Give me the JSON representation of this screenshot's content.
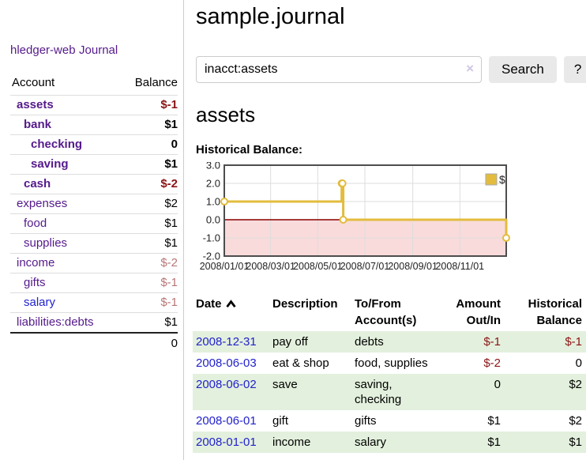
{
  "app": {
    "title": "hledger-web"
  },
  "sidebar": {
    "journal_link": "Journal",
    "accounts_header": {
      "account": "Account",
      "balance": "Balance"
    },
    "accounts": [
      {
        "name": "assets",
        "balance": "$-1",
        "depth": 1,
        "bold": true,
        "neg": true,
        "blue": false
      },
      {
        "name": "bank",
        "balance": "$1",
        "depth": 2,
        "bold": true,
        "neg": false,
        "blue": false
      },
      {
        "name": "checking",
        "balance": "0",
        "depth": 3,
        "bold": true,
        "neg": false,
        "blue": false
      },
      {
        "name": "saving",
        "balance": "$1",
        "depth": 3,
        "bold": true,
        "neg": false,
        "blue": false
      },
      {
        "name": "cash",
        "balance": "$-2",
        "depth": 2,
        "bold": true,
        "neg": true,
        "blue": false
      },
      {
        "name": "expenses",
        "balance": "$2",
        "depth": 1,
        "bold": false,
        "neg": false,
        "blue": false
      },
      {
        "name": "food",
        "balance": "$1",
        "depth": 2,
        "bold": false,
        "neg": false,
        "blue": false
      },
      {
        "name": "supplies",
        "balance": "$1",
        "depth": 2,
        "bold": false,
        "neg": false,
        "blue": false
      },
      {
        "name": "income",
        "balance": "$-2",
        "depth": 1,
        "bold": false,
        "neg": true,
        "blue": false
      },
      {
        "name": "gifts",
        "balance": "$-1",
        "depth": 2,
        "bold": false,
        "neg": true,
        "blue": false
      },
      {
        "name": "salary",
        "balance": "$-1",
        "depth": 2,
        "bold": false,
        "neg": true,
        "blue": true
      },
      {
        "name": "liabilities:debts",
        "balance": "$1",
        "depth": 1,
        "bold": false,
        "neg": false,
        "blue": false
      }
    ],
    "total": "0"
  },
  "header": {
    "title": "sample.journal"
  },
  "search": {
    "value": "inacct:assets",
    "clear_icon": "×",
    "button_label": "Search",
    "help_label": "?"
  },
  "account_page": {
    "title": "assets",
    "chart_label": "Historical Balance:"
  },
  "chart_data": {
    "type": "line",
    "step": true,
    "title": "Historical Balance",
    "series": [
      {
        "name": "$",
        "color": "#e3bc3d",
        "points": [
          [
            "2008-01-01",
            1
          ],
          [
            "2008-06-01",
            2
          ],
          [
            "2008-06-02",
            2
          ],
          [
            "2008-06-03",
            0
          ],
          [
            "2008-12-31",
            -1
          ]
        ]
      }
    ],
    "x_domain": [
      "2008-01-01",
      "2008-12-31"
    ],
    "xticks": [
      "2008/01/01",
      "2008/03/01",
      "2008/05/01",
      "2008/07/01",
      "2008/09/01",
      "2008/11/01"
    ],
    "ylim": [
      -2,
      3
    ],
    "ytick_labels": [
      "3.0",
      "2.0",
      "1.0",
      "0.0",
      "-1.0",
      "-2.0"
    ],
    "grid": true,
    "legend": {
      "label": "$",
      "position": "top-right"
    },
    "negative_region_color": "#f9dbdb",
    "zero_line_color": "#8b0000",
    "border_color": "#4d4d4d",
    "grid_color": "#dddddd"
  },
  "register": {
    "columns": [
      "Date",
      "Description",
      "To/From Account(s)",
      "Amount Out/In",
      "Historical Balance"
    ],
    "rows": [
      {
        "date": "2008-12-31",
        "description": "pay off",
        "accounts": "debts",
        "amount": "$-1",
        "balance": "$-1"
      },
      {
        "date": "2008-06-03",
        "description": "eat & shop",
        "accounts": "food, supplies",
        "amount": "$-2",
        "balance": "0"
      },
      {
        "date": "2008-06-02",
        "description": "save",
        "accounts": "saving, checking",
        "amount": "0",
        "balance": "$2"
      },
      {
        "date": "2008-06-01",
        "description": "gift",
        "accounts": "gifts",
        "amount": "$1",
        "balance": "$2"
      },
      {
        "date": "2008-01-01",
        "description": "income",
        "accounts": "salary",
        "amount": "$1",
        "balance": "$1"
      }
    ]
  }
}
